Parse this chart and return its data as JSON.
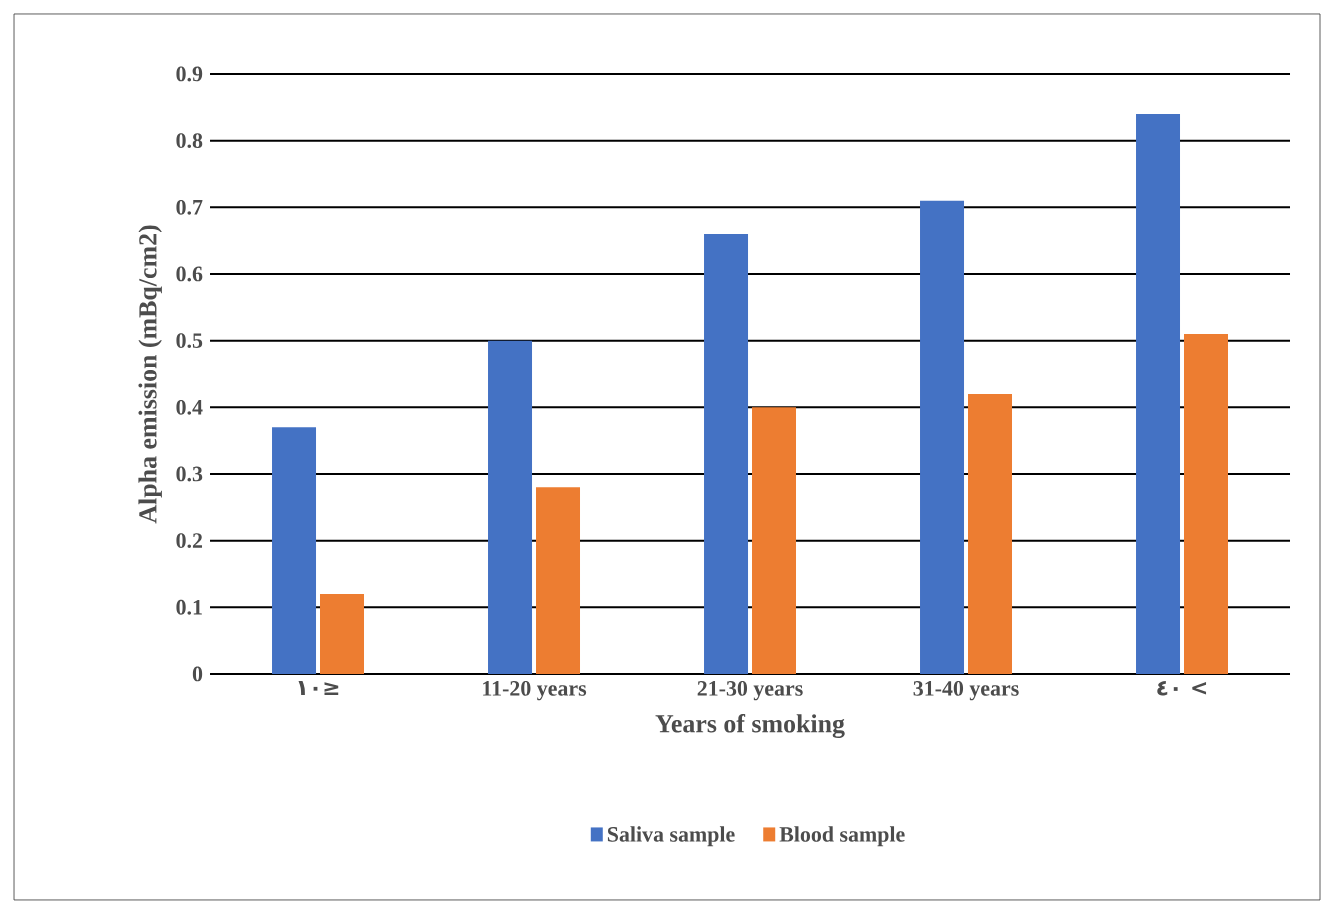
{
  "chart_data": {
    "type": "bar",
    "xlabel": "Years of smoking",
    "ylabel": "Alpha  emission (mBq/cm2)",
    "categories": [
      "١٠≥",
      "11-20 years",
      "21-30 years",
      "31-40 years",
      "٤٠ <"
    ],
    "series": [
      {
        "name": "Saliva sample",
        "color": "#4472c4",
        "values": [
          0.37,
          0.5,
          0.66,
          0.71,
          0.84
        ]
      },
      {
        "name": "Blood sample",
        "color": "#ed7d31",
        "values": [
          0.12,
          0.28,
          0.4,
          0.42,
          0.51
        ]
      }
    ],
    "ylim": [
      0,
      0.9
    ],
    "yticks": [
      0,
      0.1,
      0.2,
      0.3,
      0.4,
      0.5,
      0.6,
      0.7,
      0.8,
      0.9
    ],
    "grid": "y",
    "legend": "bottom"
  }
}
